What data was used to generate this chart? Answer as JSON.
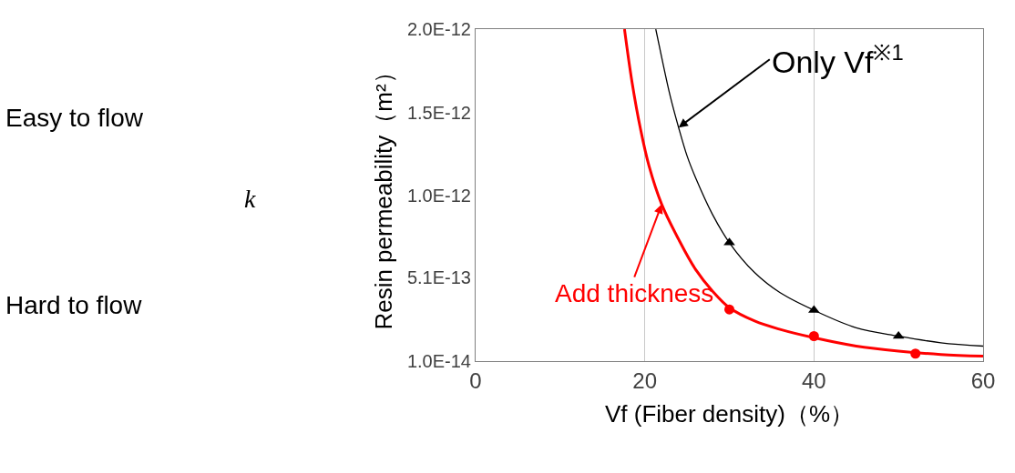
{
  "chart_data": {
    "type": "line",
    "xlabel": "Vf (Fiber density)（%）",
    "ylabel": "Resin permeability（m²）",
    "xlim": [
      0,
      60
    ],
    "xticks": [
      0,
      20,
      40,
      60
    ],
    "ylim": [
      1e-14,
      2e-12
    ],
    "yticks": [
      {
        "value": 1e-14,
        "label": "1.0E-14"
      },
      {
        "value": 5.1e-13,
        "label": "5.1E-13"
      },
      {
        "value": 1e-12,
        "label": "1.0E-12"
      },
      {
        "value": 1.5e-12,
        "label": "1.5E-12"
      },
      {
        "value": 2e-12,
        "label": "2.0E-12"
      }
    ],
    "grid": "x",
    "series": [
      {
        "color": "#000000",
        "marker": "none",
        "x": [
          21.3,
          22,
          23,
          24,
          25,
          26,
          28,
          30,
          33,
          36,
          40,
          45,
          50,
          55,
          60
        ],
        "values": [
          2e-12,
          1.83e-12,
          1.6e-12,
          1.41e-12,
          1.24e-12,
          1.11e-12,
          8.9e-13,
          7.2e-13,
          5.4e-13,
          4.2e-13,
          3.15e-13,
          2.1e-13,
          1.6e-13,
          1.2e-13,
          1e-13
        ]
      },
      {
        "type": "scatter",
        "color": "#000000",
        "marker": "triangle",
        "x": [
          30,
          40,
          50
        ],
        "values": [
          7.2e-13,
          3.15e-13,
          1.6e-13
        ]
      },
      {
        "color": "#ff0000",
        "marker": "none",
        "x": [
          17.6,
          18.5,
          19.5,
          20.5,
          22,
          24,
          26,
          28,
          30,
          33,
          36,
          40,
          45,
          50,
          55,
          60
        ],
        "values": [
          2e-12,
          1.68e-12,
          1.4e-12,
          1.18e-12,
          9.5e-13,
          7.4e-13,
          5.6e-13,
          4.3e-13,
          3.3e-13,
          2.5e-13,
          2e-13,
          1.5e-13,
          1e-13,
          7e-14,
          5e-14,
          4e-14
        ]
      },
      {
        "type": "scatter",
        "color": "#ff0000",
        "marker": "circle",
        "x": [
          30,
          40,
          52
        ],
        "values": [
          3.2e-13,
          1.6e-13,
          5.5e-14
        ]
      }
    ],
    "annotations": [
      {
        "text": "Only Vf$^{※1}$",
        "x": 24,
        "y": 1.41e-12
      },
      {
        "text": "Add thickness",
        "x": 22,
        "y": 9.5e-13
      },
      "Easy to flow",
      "k",
      "Hard to flow"
    ]
  }
}
